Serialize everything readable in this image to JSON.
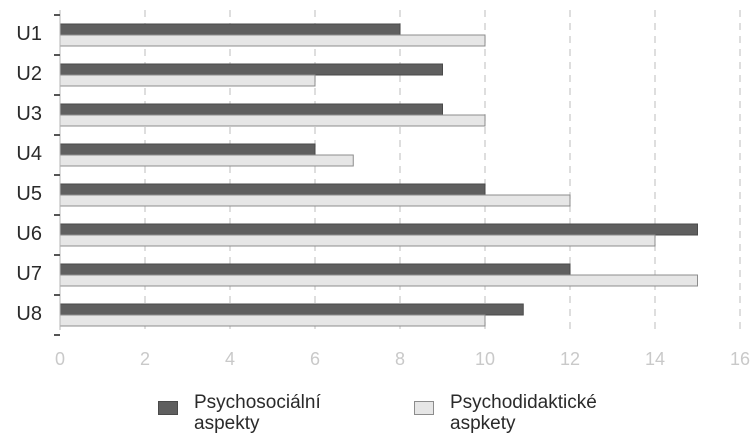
{
  "chart_data": {
    "type": "bar",
    "orientation": "horizontal",
    "categories": [
      "U1",
      "U2",
      "U3",
      "U4",
      "U5",
      "U6",
      "U7",
      "U8"
    ],
    "series": [
      {
        "name": "Psychosociální aspekty",
        "color": "#5f5f5f",
        "values": [
          8,
          9,
          9,
          6,
          10,
          15,
          12,
          10.9
        ]
      },
      {
        "name": "Psychodidaktické aspkety",
        "color": "#e6e6e6",
        "values": [
          10,
          6,
          10,
          6.9,
          12,
          14,
          15,
          10
        ]
      }
    ],
    "xlim": [
      0,
      16
    ],
    "xticks": [
      0,
      2,
      4,
      6,
      8,
      10,
      12,
      14,
      16
    ],
    "grid": "vertical dashed",
    "legend_position": "bottom"
  },
  "legend": {
    "items": [
      {
        "line1": "Psychosociální",
        "line2": "aspekty"
      },
      {
        "line1": "Psychodidaktické",
        "line2": "aspkety"
      }
    ]
  }
}
